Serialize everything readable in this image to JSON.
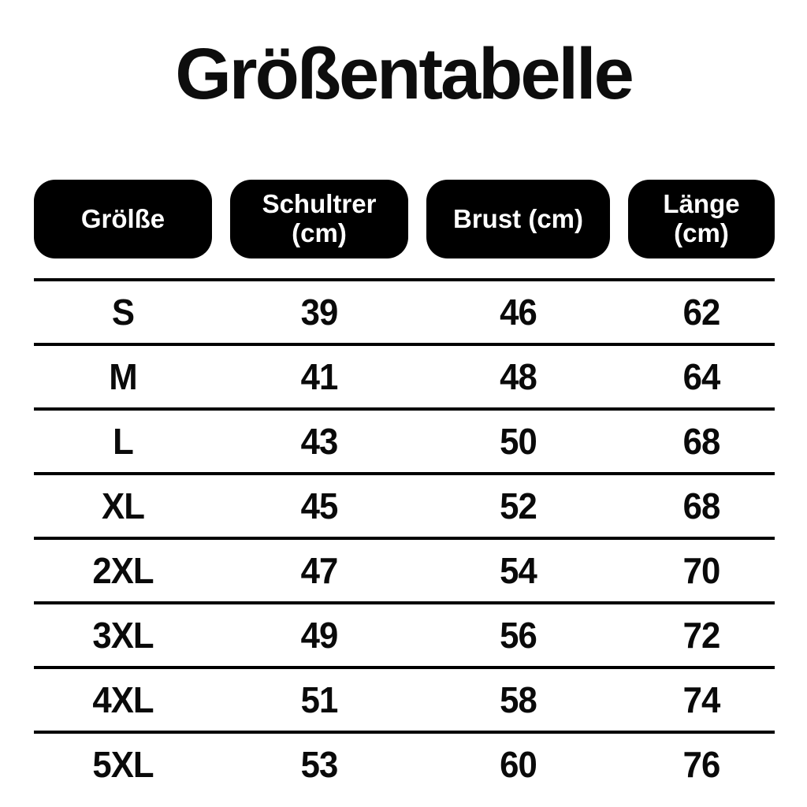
{
  "page": {
    "background": "#ffffff",
    "ink": "#0a0a0a",
    "pill_background": "#000000",
    "pill_text_color": "#ffffff"
  },
  "title": "Größentabelle",
  "header": {
    "size": {
      "line1": "Grölße",
      "line2": ""
    },
    "shoulder": {
      "line1": "Schultrer",
      "line2": "(cm)"
    },
    "chest": {
      "line1": "Brust (cm)",
      "line2": ""
    },
    "length": {
      "line1": "Länge",
      "line2": "(cm)"
    }
  },
  "rows": [
    {
      "size": "S",
      "shoulder": "39",
      "chest": "46",
      "length": "62"
    },
    {
      "size": "M",
      "shoulder": "41",
      "chest": "48",
      "length": "64"
    },
    {
      "size": "L",
      "shoulder": "43",
      "chest": "50",
      "length": "68"
    },
    {
      "size": "XL",
      "shoulder": "45",
      "chest": "52",
      "length": "68"
    },
    {
      "size": "2XL",
      "shoulder": "47",
      "chest": "54",
      "length": "70"
    },
    {
      "size": "3XL",
      "shoulder": "49",
      "chest": "56",
      "length": "72"
    },
    {
      "size": "4XL",
      "shoulder": "51",
      "chest": "58",
      "length": "74"
    },
    {
      "size": "5XL",
      "shoulder": "53",
      "chest": "60",
      "length": "76"
    }
  ],
  "chart_data": {
    "type": "table",
    "title": "Größentabelle",
    "columns": [
      "Grölße",
      "Schultrer (cm)",
      "Brust (cm)",
      "Länge (cm)"
    ],
    "rows": [
      [
        "S",
        39,
        46,
        62
      ],
      [
        "M",
        41,
        48,
        64
      ],
      [
        "L",
        43,
        50,
        68
      ],
      [
        "XL",
        45,
        52,
        68
      ],
      [
        "2XL",
        47,
        54,
        70
      ],
      [
        "3XL",
        49,
        56,
        72
      ],
      [
        "4XL",
        51,
        58,
        74
      ],
      [
        "5XL",
        53,
        60,
        76
      ]
    ]
  }
}
